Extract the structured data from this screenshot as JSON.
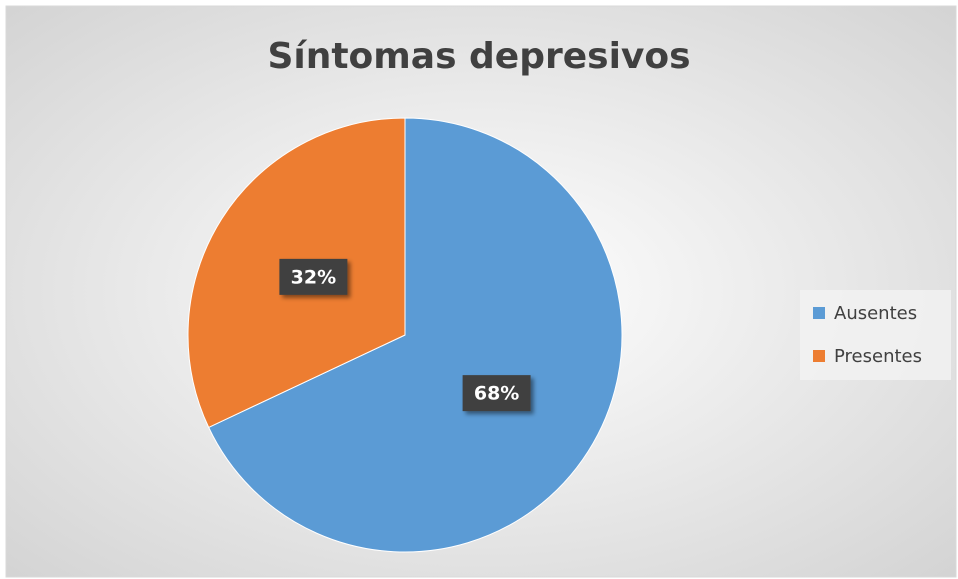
{
  "chart_data": {
    "type": "pie",
    "title": "Síntomas depresivos",
    "categories": [
      "Ausentes",
      "Presentes"
    ],
    "values": [
      68,
      32
    ],
    "value_labels": [
      "68%",
      "32%"
    ],
    "colors": [
      "#5b9bd5",
      "#ed7d31"
    ],
    "legend": "right"
  }
}
